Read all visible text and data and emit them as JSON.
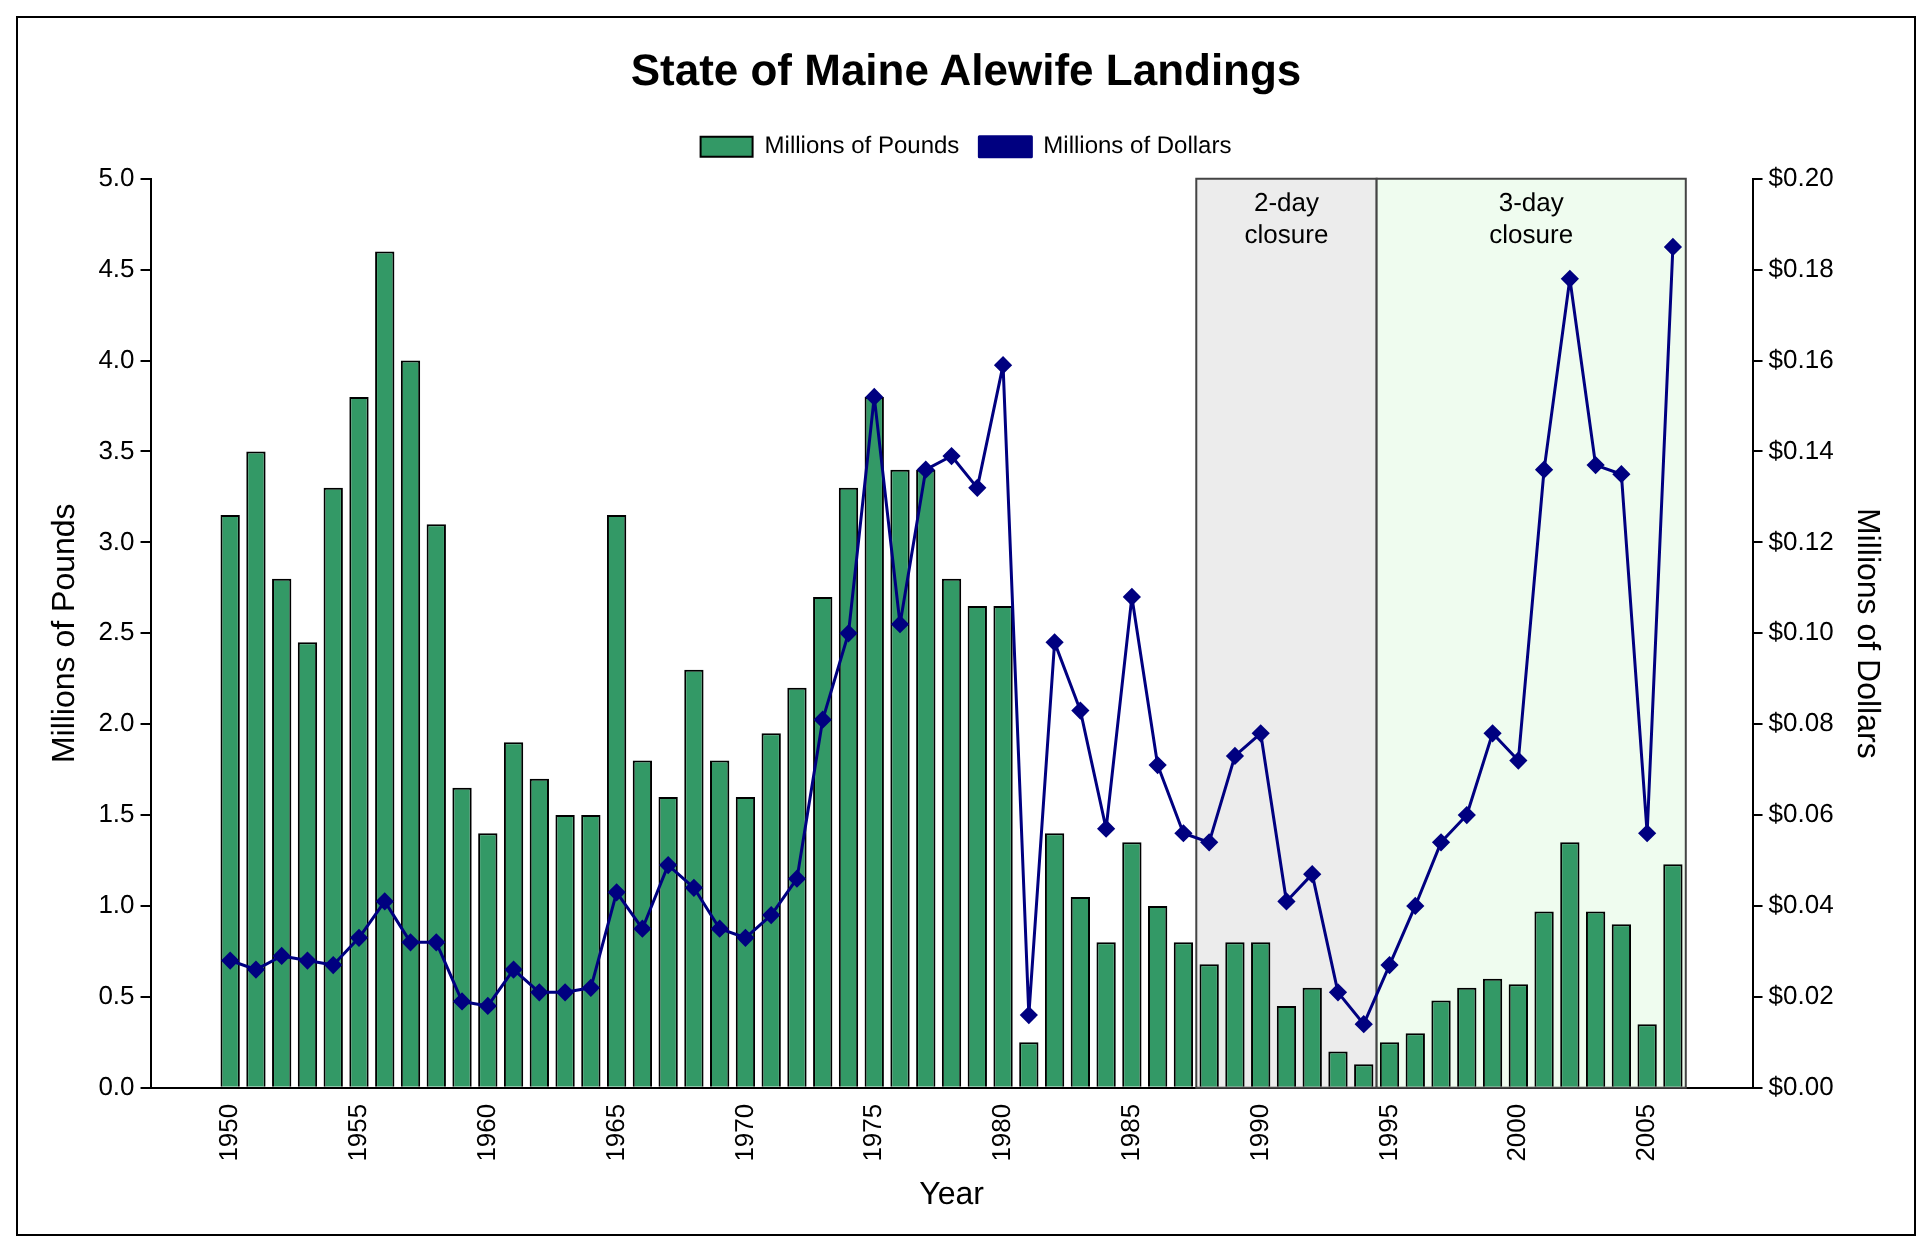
{
  "chart_data": {
    "type": "bar",
    "title": "State of Maine Alewife Landings",
    "xlabel": "Year",
    "ylabel": "Millions of Pounds",
    "y2label": "Millions of Dollars",
    "x": [
      1950,
      1951,
      1952,
      1953,
      1954,
      1955,
      1956,
      1957,
      1958,
      1959,
      1960,
      1961,
      1962,
      1963,
      1964,
      1965,
      1966,
      1967,
      1968,
      1969,
      1970,
      1971,
      1972,
      1973,
      1974,
      1975,
      1976,
      1977,
      1978,
      1979,
      1980,
      1981,
      1982,
      1983,
      1984,
      1985,
      1986,
      1987,
      1988,
      1989,
      1990,
      1991,
      1992,
      1993,
      1994,
      1995,
      1996,
      1997,
      1998,
      1999,
      2000,
      2001,
      2002,
      2003,
      2004,
      2005,
      2006
    ],
    "series": [
      {
        "name": "Millions of Pounds",
        "color": "#339966",
        "values": [
          3.15,
          3.5,
          2.8,
          2.45,
          3.3,
          3.8,
          4.6,
          4.0,
          3.1,
          1.65,
          1.4,
          1.9,
          1.7,
          1.5,
          1.5,
          3.15,
          1.8,
          1.6,
          2.3,
          1.8,
          1.6,
          1.95,
          2.2,
          2.7,
          3.3,
          3.8,
          3.4,
          3.4,
          2.8,
          2.65,
          2.65,
          0.25,
          1.4,
          1.05,
          0.8,
          1.35,
          1.0,
          0.8,
          0.68,
          0.8,
          0.8,
          0.45,
          0.55,
          0.2,
          0.13,
          0.25,
          0.3,
          0.48,
          0.55,
          0.6,
          0.57,
          0.97,
          1.35,
          0.97,
          0.9,
          0.35,
          1.23
        ]
      },
      {
        "name": "Millions of Dollars",
        "type": "line",
        "axis": "y2",
        "color": "#000080",
        "marker": "diamond",
        "line_style": "solid",
        "values": [
          0.028,
          0.026,
          0.029,
          0.028,
          0.027,
          0.033,
          0.041,
          0.032,
          0.032,
          0.019,
          0.018,
          0.026,
          0.021,
          0.021,
          0.022,
          0.043,
          0.035,
          0.049,
          0.044,
          0.035,
          0.033,
          0.038,
          0.046,
          0.081,
          0.1,
          0.152,
          0.102,
          0.136,
          0.139,
          0.132,
          0.159,
          0.016,
          0.098,
          0.083,
          0.057,
          0.108,
          0.071,
          0.056,
          0.054,
          0.073,
          0.078,
          0.041,
          0.047,
          0.021,
          0.014,
          0.027,
          0.04,
          0.054,
          0.06,
          0.078,
          0.072,
          0.136,
          0.178,
          0.137,
          0.135,
          0.056,
          0.185
        ]
      }
    ],
    "xlim": [
      1949.5,
      2006.5
    ],
    "xticks": [
      1950,
      1955,
      1960,
      1965,
      1970,
      1975,
      1980,
      1985,
      1990,
      1995,
      2000,
      2005
    ],
    "ylim": [
      0,
      5
    ],
    "yticks": [
      {
        "value": 0,
        "label": "0.0"
      },
      {
        "value": 0.5,
        "label": "0.5"
      },
      {
        "value": 1,
        "label": "1.0"
      },
      {
        "value": 1.5,
        "label": "1.5"
      },
      {
        "value": 2,
        "label": "2.0"
      },
      {
        "value": 2.5,
        "label": "2.5"
      },
      {
        "value": 3,
        "label": "3.0"
      },
      {
        "value": 3.5,
        "label": "3.5"
      },
      {
        "value": 4,
        "label": "4.0"
      },
      {
        "value": 4.5,
        "label": "4.5"
      },
      {
        "value": 5,
        "label": "5.0"
      }
    ],
    "y2lim": [
      0,
      0.2
    ],
    "y2ticks": [
      {
        "value": 0,
        "label": "$0.00"
      },
      {
        "value": 0.02,
        "label": "$0.02"
      },
      {
        "value": 0.04,
        "label": "$0.04"
      },
      {
        "value": 0.06,
        "label": "$0.06"
      },
      {
        "value": 0.08,
        "label": "$0.08"
      },
      {
        "value": 0.1,
        "label": "$0.10"
      },
      {
        "value": 0.12,
        "label": "$0.12"
      },
      {
        "value": 0.14,
        "label": "$0.14"
      },
      {
        "value": 0.16,
        "label": "$0.16"
      },
      {
        "value": 0.18,
        "label": "$0.18"
      },
      {
        "value": 0.2,
        "label": "$0.20"
      }
    ],
    "bands": [
      {
        "axis": "x",
        "from": 1987.5,
        "to": 1994.5,
        "label": "2-day closure",
        "color": "#ececec"
      },
      {
        "axis": "x",
        "from": 1994.5,
        "to": 2006.5,
        "label": "3-day closure",
        "color": "#effcef"
      }
    ],
    "legend": "top",
    "grid": false
  }
}
